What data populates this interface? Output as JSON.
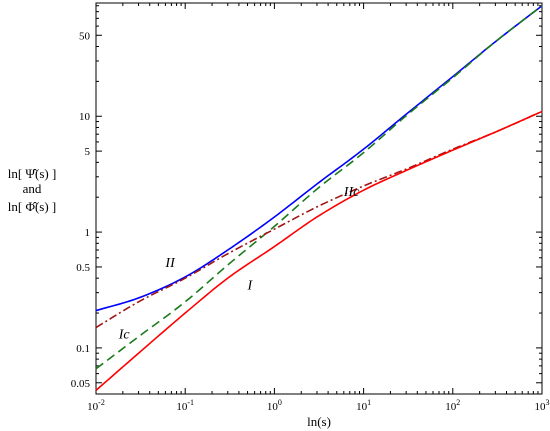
{
  "chart_data": {
    "type": "line",
    "title": "",
    "xlabel": "ln(s)",
    "ylabel_lines": [
      "ln[ Ψ̂(s) ]",
      "and",
      "ln[ Φ̂(s) ]"
    ],
    "xscale": "log",
    "yscale": "log",
    "xlim": [
      0.01,
      1000
    ],
    "ylim": [
      0.04,
      95
    ],
    "grid": false,
    "x_ticks": [
      {
        "value": 0.01,
        "base": "10",
        "exp": "-2"
      },
      {
        "value": 0.1,
        "base": "10",
        "exp": "-1"
      },
      {
        "value": 1,
        "base": "10",
        "exp": "0"
      },
      {
        "value": 10,
        "base": "10",
        "exp": "1"
      },
      {
        "value": 100,
        "base": "10",
        "exp": "2"
      },
      {
        "value": 1000,
        "base": "10",
        "exp": "3"
      }
    ],
    "y_ticks": [
      {
        "value": 0.05,
        "label": "0.05"
      },
      {
        "value": 0.1,
        "label": "0.1"
      },
      {
        "value": 0.5,
        "label": "0.5"
      },
      {
        "value": 1,
        "label": "1"
      },
      {
        "value": 5,
        "label": "5"
      },
      {
        "value": 10,
        "label": "10"
      },
      {
        "value": 50,
        "label": "50"
      }
    ],
    "series": [
      {
        "name": "II",
        "color": "#0000ff",
        "dash": "solid",
        "x": [
          0.01,
          0.03,
          0.1,
          0.3,
          1,
          3,
          10,
          30,
          100,
          300,
          1000
        ],
        "y": [
          0.21,
          0.27,
          0.41,
          0.7,
          1.35,
          2.6,
          5.2,
          10.4,
          22,
          44,
          90
        ]
      },
      {
        "name": "IIc",
        "color": "#1a7a1a",
        "dash": "dashed",
        "x": [
          0.01,
          0.03,
          0.1,
          0.3,
          1,
          3,
          10,
          30,
          100,
          300,
          1000
        ],
        "y": [
          0.066,
          0.125,
          0.25,
          0.52,
          1.12,
          2.35,
          4.85,
          10.1,
          21.5,
          44,
          90
        ]
      },
      {
        "name": "Ic",
        "color": "#a01515",
        "dash": "dashdot",
        "x": [
          0.01,
          0.03,
          0.1,
          0.3,
          1,
          3,
          10,
          30,
          100,
          300,
          1000
        ],
        "y": [
          0.15,
          0.25,
          0.4,
          0.65,
          1.06,
          1.65,
          2.5,
          3.5,
          5.2,
          7.3,
          11
        ]
      },
      {
        "name": "I",
        "color": "#ff0000",
        "dash": "solid",
        "x": [
          0.01,
          0.03,
          0.1,
          0.3,
          1,
          3,
          10,
          30,
          100,
          300,
          1000
        ],
        "y": [
          0.043,
          0.09,
          0.2,
          0.4,
          0.75,
          1.35,
          2.3,
          3.4,
          5.1,
          7.3,
          11
        ]
      }
    ],
    "annotations": [
      {
        "text": "II",
        "x": 0.06,
        "y": 0.5
      },
      {
        "text": "IIc",
        "x": 6,
        "y": 2.05
      },
      {
        "text": "I",
        "x": 0.5,
        "y": 0.32
      },
      {
        "text": "Ic",
        "x": 0.018,
        "y": 0.12
      }
    ]
  }
}
